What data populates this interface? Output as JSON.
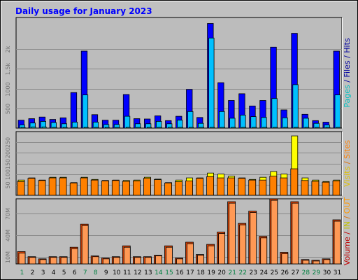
{
  "chart_data": {
    "type": "bar",
    "title": "Daily usage for January 2023",
    "days": [
      "1",
      "2",
      "3",
      "4",
      "5",
      "6",
      "7",
      "8",
      "9",
      "10",
      "11",
      "12",
      "13",
      "14",
      "15",
      "16",
      "17",
      "18",
      "19",
      "20",
      "21",
      "22",
      "23",
      "24",
      "25",
      "26",
      "27",
      "28",
      "29",
      "30",
      "31"
    ],
    "weekend_days": [
      "1",
      "7",
      "8",
      "14",
      "15",
      "21",
      "22",
      "28",
      "29"
    ],
    "panels": [
      {
        "name": "hits-files-pages",
        "axis_label": "Pages / Files / Hits",
        "axis_label_parts": [
          {
            "text": "Pages",
            "color": "#00c0c0"
          },
          {
            "text": " / ",
            "color": "#0000a0"
          },
          {
            "text": "Files",
            "color": "#0000a0"
          },
          {
            "text": " / ",
            "color": "#0000a0"
          },
          {
            "text": "Hits",
            "color": "#0000a0"
          }
        ],
        "ymax": 2800,
        "ticks": [
          {
            "value": 500,
            "label": "500"
          },
          {
            "value": 1000,
            "label": "1000"
          },
          {
            "value": 1500,
            "label": "1,5k"
          },
          {
            "value": 2000,
            "label": "2k"
          }
        ],
        "series": [
          {
            "name": "Hits",
            "color": "#0000ff",
            "values": [
              200,
              240,
              280,
              220,
              260,
              900,
              1950,
              340,
              200,
              200,
              850,
              240,
              230,
              310,
              190,
              300,
              980,
              270,
              2650,
              1150,
              700,
              870,
              560,
              700,
              2050,
              460,
              2400,
              350,
              190,
              150,
              1950
            ]
          },
          {
            "name": "Files",
            "color": "#00c0ff",
            "values": [
              80,
              130,
              170,
              140,
              110,
              150,
              840,
              150,
              90,
              90,
              300,
              110,
              110,
              170,
              110,
              200,
              420,
              120,
              2280,
              420,
              250,
              330,
              290,
              270,
              750,
              260,
              1100,
              250,
              120,
              80,
              840
            ]
          },
          {
            "name": "Pages",
            "color": "#00e0e0",
            "values": [
              20,
              30,
              30,
              20,
              20,
              20,
              20,
              20,
              20,
              20,
              20,
              20,
              20,
              20,
              20,
              20,
              20,
              20,
              20,
              20,
              20,
              20,
              20,
              20,
              20,
              20,
              20,
              20,
              20,
              20,
              20
            ]
          }
        ]
      },
      {
        "name": "visits-sites",
        "axis_label": "Visits / Sites",
        "axis_label_parts": [
          {
            "text": "Visits",
            "color": "#e0c000"
          },
          {
            "text": " / ",
            "color": "#e07000"
          },
          {
            "text": "Sites",
            "color": "#ff8000"
          }
        ],
        "ymax": 300,
        "ticks": [
          {
            "value": 50,
            "label": "50"
          },
          {
            "value": 100,
            "label": "100"
          },
          {
            "value": 150,
            "label": "150"
          },
          {
            "value": 200,
            "label": "200"
          },
          {
            "value": 250,
            "label": "250"
          }
        ],
        "series": [
          {
            "name": "Visits",
            "color": "#ffff00",
            "values": [
              72,
              82,
              72,
              85,
              85,
              60,
              85,
              75,
              70,
              72,
              70,
              72,
              85,
              76,
              60,
              72,
              82,
              82,
              105,
              100,
              90,
              82,
              75,
              85,
              112,
              100,
              280,
              82,
              72,
              65,
              72
            ]
          },
          {
            "name": "Sites",
            "color": "#ff8000",
            "values": [
              65,
              80,
              70,
              82,
              82,
              58,
              82,
              72,
              68,
              70,
              66,
              68,
              80,
              74,
              58,
              64,
              68,
              80,
              88,
              82,
              82,
              80,
              72,
              72,
              90,
              82,
              125,
              70,
              66,
              62,
              68
            ]
          }
        ]
      },
      {
        "name": "kbytes",
        "axis_label": "Volume / IN / OUT",
        "axis_label_parts": [
          {
            "text": "Volume",
            "color": "#c00000"
          },
          {
            "text": " / ",
            "color": "#c00000"
          },
          {
            "text": "IN",
            "color": "#c0c000"
          },
          {
            "text": " / ",
            "color": "#e07000"
          },
          {
            "text": "OUT",
            "color": "#ff9900"
          }
        ],
        "ymax": 90,
        "ticks": [
          {
            "value": 10,
            "label": "10M"
          },
          {
            "value": 40,
            "label": "40M"
          },
          {
            "value": 70,
            "label": "70M"
          }
        ],
        "series": [
          {
            "name": "Volume",
            "color": "#e04000",
            "values": [
              17,
              10,
              7,
              10,
              10,
              23,
              55,
              11,
              8,
              10,
              25,
              10,
              10,
              12,
              25,
              8,
              30,
              13,
              27,
              44,
              86,
              56,
              73,
              38,
              90,
              16,
              86,
              6,
              5,
              7,
              61
            ]
          },
          {
            "name": "OUT",
            "color": "#ff9955",
            "values": [
              15,
              9,
              6,
              9,
              9,
              21,
              53,
              10,
              7,
              9,
              23,
              9,
              9,
              11,
              23,
              7,
              28,
              12,
              25,
              42,
              84,
              54,
              71,
              36,
              88,
              14,
              84,
              5,
              4,
              6,
              59
            ]
          }
        ]
      }
    ]
  }
}
